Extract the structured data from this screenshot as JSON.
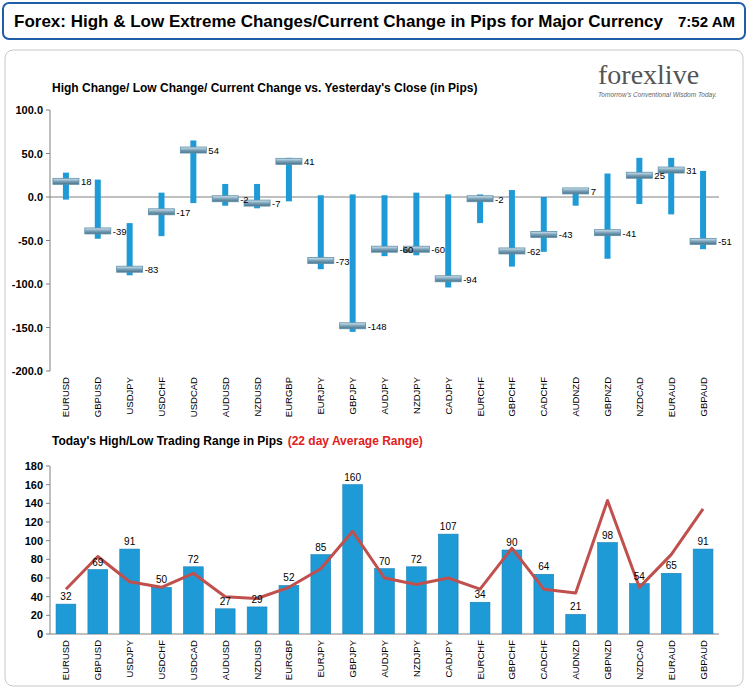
{
  "header": {
    "title": "Forex:  High & Low Extreme Changes/Current Change in Pips for Major Currency",
    "time": "7:52 AM"
  },
  "logo": {
    "name": "forexlive",
    "tagline": "Tomorrow's Conventional Wisdom Today."
  },
  "chart_data": [
    {
      "type": "range",
      "title": "High Change/ Low Change/ Current Change vs. Yesterday's Close (in Pips)",
      "categories": [
        "EURUSD",
        "GBPUSD",
        "USDJPY",
        "USDCHF",
        "USDCAD",
        "AUDUSD",
        "NZDUSD",
        "EURGBP",
        "EURJPY",
        "GBPJPY",
        "AUDJPY",
        "NZDJPY",
        "CADJPY",
        "EURCHF",
        "GBPCHF",
        "CADCHF",
        "AUDNZD",
        "GBPNZD",
        "NZDCAD",
        "EURAUD",
        "GBPAUD"
      ],
      "series": [
        {
          "color": "#1e9bd7",
          "values": [
            28,
            20,
            -30,
            5,
            65,
            15,
            15,
            45,
            2,
            3,
            2,
            5,
            3,
            3,
            8,
            0,
            10,
            27,
            45,
            45,
            30
          ]
        },
        {
          "color": "#1e9bd7",
          "values": [
            -3,
            -48,
            -90,
            -45,
            -7,
            -10,
            -13,
            -5,
            -83,
            -155,
            -68,
            -67,
            -104,
            -30,
            -80,
            -63,
            -10,
            -71,
            -8,
            -20,
            -60
          ]
        },
        {
          "color": "#5e8fa8",
          "marker": "dash",
          "values": [
            18,
            -39,
            -83,
            -17,
            54,
            -2,
            -7,
            41,
            -73,
            -148,
            -60,
            -60,
            -94,
            -2,
            -62,
            -43,
            7,
            -41,
            25,
            31,
            -51
          ]
        }
      ],
      "ylim": [
        -200,
        100
      ],
      "yticks": [
        {
          "value": -200,
          "label": "-200.0"
        },
        {
          "value": -150,
          "label": "-150.0"
        },
        {
          "value": -100,
          "label": "-100.0"
        },
        {
          "value": -50,
          "label": "-50.0"
        },
        {
          "value": 0,
          "label": "0.0"
        },
        {
          "value": 50,
          "label": "50.0"
        },
        {
          "value": 100,
          "label": "100.0"
        }
      ],
      "grid": false,
      "data_labels": true
    },
    {
      "type": "bar",
      "title": "Today's High/Low Trading Range in Pips",
      "subtitle": "(22 day Average Range)",
      "categories": [
        "EURUSD",
        "GBPUSD",
        "USDJPY",
        "USDCHF",
        "USDCAD",
        "AUDUSD",
        "NZDUSD",
        "EURGBP",
        "EURJPY",
        "GBPJPY",
        "AUDJPY",
        "NZDJPY",
        "CADJPY",
        "EURCHF",
        "GBPCHF",
        "CADCHF",
        "AUDNZD",
        "GBPNZD",
        "NZDCAD",
        "EURAUD",
        "GBPAUD"
      ],
      "series": [
        {
          "type": "bar",
          "color": "#1e9bd7",
          "values": [
            32,
            69,
            91,
            50,
            72,
            27,
            29,
            52,
            85,
            160,
            70,
            72,
            107,
            34,
            90,
            64,
            21,
            98,
            54,
            65,
            91
          ]
        },
        {
          "type": "line",
          "color": "#c0504d",
          "values": [
            48,
            83,
            56,
            50,
            65,
            40,
            38,
            50,
            70,
            110,
            60,
            53,
            60,
            48,
            92,
            48,
            44,
            143,
            50,
            85,
            134
          ]
        }
      ],
      "ylim": [
        0,
        180
      ],
      "yticks": [
        0,
        20,
        40,
        60,
        80,
        100,
        120,
        140,
        160,
        180
      ],
      "grid": false,
      "data_labels": true
    }
  ]
}
